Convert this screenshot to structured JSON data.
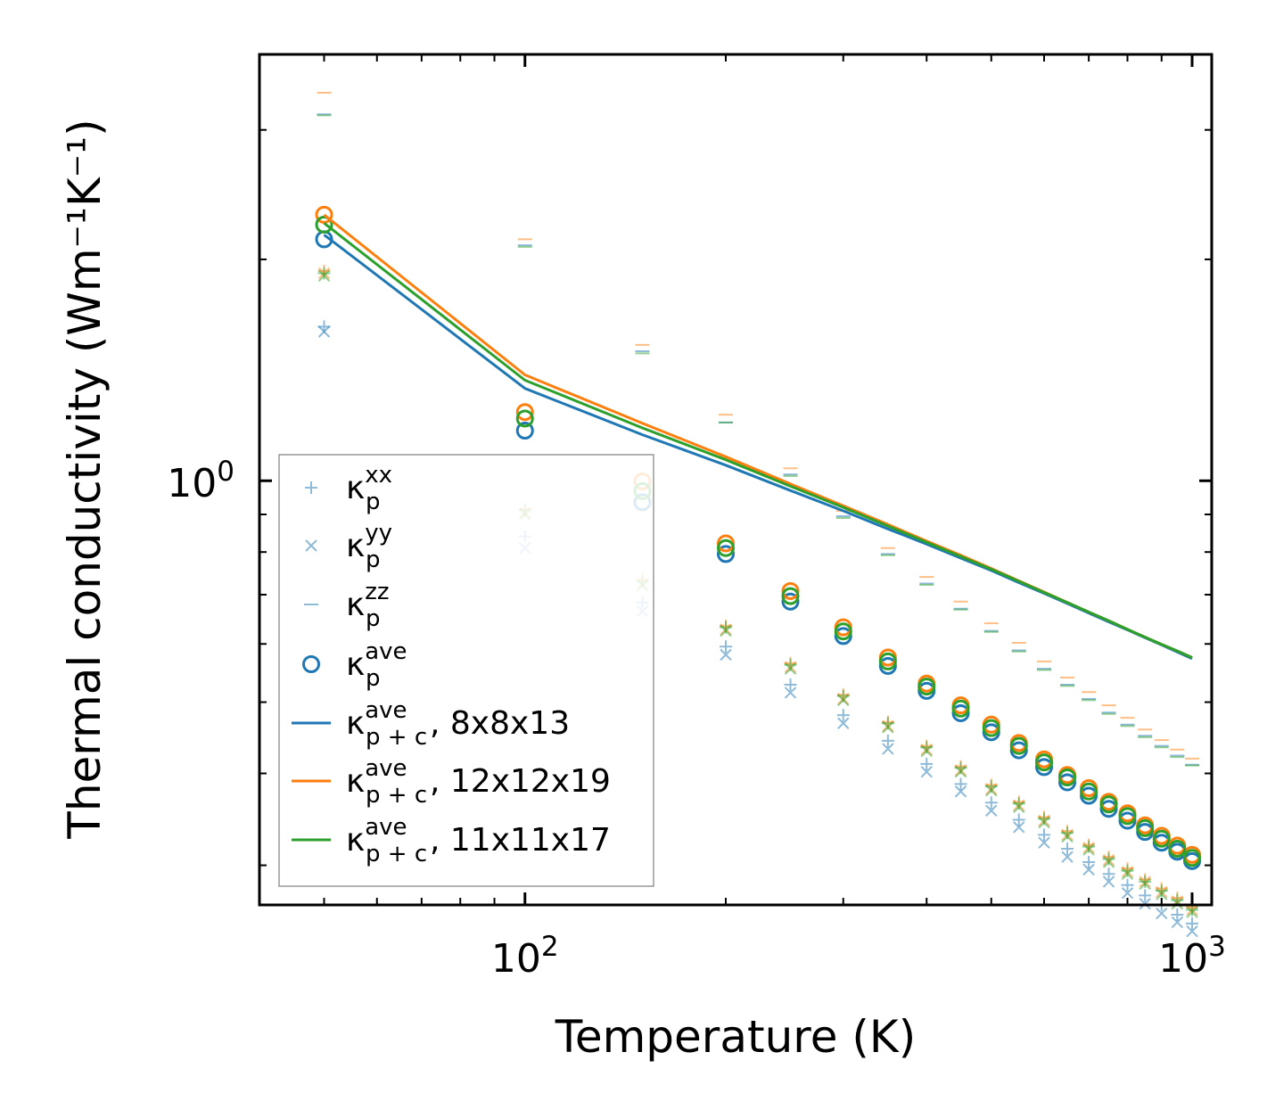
{
  "chart_data": {
    "type": "scatter",
    "xscale": "log",
    "yscale": "log",
    "xlabel": "Temperature (K)",
    "ylabel": "Thermal conductivity (Wm⁻¹K⁻¹)",
    "xlim": [
      40,
      1070
    ],
    "ylim": [
      0.265,
      3.8
    ],
    "xticks": [
      {
        "value": 100,
        "base": "10",
        "exp": "2"
      },
      {
        "value": 1000,
        "base": "10",
        "exp": "3"
      }
    ],
    "yticks": [
      {
        "value": 1.0,
        "base": "10",
        "exp": "0"
      }
    ],
    "temperatures": [
      50,
      100,
      150,
      200,
      250,
      300,
      350,
      400,
      450,
      500,
      550,
      600,
      650,
      700,
      750,
      800,
      850,
      900,
      950,
      1000
    ],
    "colors": {
      "blue": "#1f77b4",
      "orange": "#ff7f0e",
      "green": "#2ca02c"
    },
    "grids": [
      {
        "name": "8x8x13",
        "color": "#1f77b4",
        "kxx": [
          1.62,
          0.84,
          0.683,
          0.595,
          0.528,
          0.48,
          0.443,
          0.412,
          0.387,
          0.365,
          0.346,
          0.33,
          0.316,
          0.303,
          0.292,
          0.282,
          0.273,
          0.265,
          0.257,
          0.25
        ],
        "kyy": [
          1.595,
          0.81,
          0.665,
          0.58,
          0.515,
          0.468,
          0.432,
          0.402,
          0.378,
          0.356,
          0.338,
          0.322,
          0.308,
          0.296,
          0.285,
          0.275,
          0.266,
          0.258,
          0.251,
          0.244
        ],
        "kzz": [
          3.15,
          2.09,
          1.5,
          1.2,
          1.02,
          0.895,
          0.795,
          0.725,
          0.67,
          0.625,
          0.588,
          0.555,
          0.528,
          0.505,
          0.484,
          0.466,
          0.45,
          0.436,
          0.423,
          0.411
        ],
        "kave": [
          2.13,
          1.17,
          0.935,
          0.795,
          0.685,
          0.615,
          0.56,
          0.518,
          0.483,
          0.455,
          0.43,
          0.408,
          0.389,
          0.373,
          0.358,
          0.345,
          0.333,
          0.322,
          0.313,
          0.304
        ],
        "kpc": [
          2.16,
          1.335,
          1.155,
          1.05,
          0.97,
          0.91,
          0.86,
          0.82,
          0.785,
          0.755,
          0.727,
          0.703,
          0.681,
          0.661,
          0.643,
          0.627,
          0.612,
          0.598,
          0.585,
          0.573
        ]
      },
      {
        "name": "12x12x19",
        "color": "#ff7f0e",
        "kxx": [
          1.93,
          0.915,
          0.735,
          0.635,
          0.565,
          0.512,
          0.47,
          0.436,
          0.409,
          0.386,
          0.366,
          0.349,
          0.334,
          0.32,
          0.308,
          0.297,
          0.287,
          0.279,
          0.271,
          0.263
        ],
        "kyy": [
          1.915,
          0.905,
          0.725,
          0.628,
          0.558,
          0.505,
          0.464,
          0.431,
          0.404,
          0.381,
          0.362,
          0.345,
          0.33,
          0.317,
          0.305,
          0.294,
          0.285,
          0.276,
          0.268,
          0.261
        ],
        "kzz": [
          3.37,
          2.13,
          1.53,
          1.23,
          1.04,
          0.91,
          0.81,
          0.74,
          0.685,
          0.64,
          0.602,
          0.568,
          0.54,
          0.516,
          0.495,
          0.476,
          0.459,
          0.444,
          0.431,
          0.419
        ],
        "kave": [
          2.3,
          1.24,
          0.998,
          0.822,
          0.708,
          0.632,
          0.575,
          0.53,
          0.495,
          0.466,
          0.44,
          0.418,
          0.398,
          0.382,
          0.366,
          0.353,
          0.34,
          0.329,
          0.319,
          0.31
        ],
        "kpc": [
          2.3,
          1.393,
          1.197,
          1.078,
          0.99,
          0.925,
          0.872,
          0.828,
          0.792,
          0.76,
          0.731,
          0.706,
          0.683,
          0.663,
          0.645,
          0.628,
          0.613,
          0.599,
          0.587,
          0.575
        ]
      },
      {
        "name": "11x11x17",
        "color": "#2ca02c",
        "kxx": [
          1.915,
          0.912,
          0.73,
          0.632,
          0.562,
          0.51,
          0.468,
          0.434,
          0.407,
          0.384,
          0.364,
          0.347,
          0.332,
          0.318,
          0.306,
          0.295,
          0.285,
          0.277,
          0.269,
          0.261
        ],
        "kyy": [
          1.9,
          0.9,
          0.72,
          0.625,
          0.555,
          0.503,
          0.462,
          0.429,
          0.402,
          0.379,
          0.36,
          0.343,
          0.328,
          0.315,
          0.303,
          0.292,
          0.283,
          0.274,
          0.266,
          0.259
        ],
        "kzz": [
          3.14,
          2.08,
          1.49,
          1.2,
          1.015,
          0.89,
          0.792,
          0.722,
          0.668,
          0.623,
          0.586,
          0.553,
          0.526,
          0.503,
          0.482,
          0.464,
          0.448,
          0.434,
          0.421,
          0.41
        ],
        "kave": [
          2.23,
          1.215,
          0.968,
          0.81,
          0.697,
          0.624,
          0.568,
          0.525,
          0.49,
          0.461,
          0.436,
          0.414,
          0.395,
          0.378,
          0.363,
          0.35,
          0.337,
          0.326,
          0.316,
          0.307
        ],
        "kpc": [
          2.24,
          1.37,
          1.18,
          1.068,
          0.983,
          0.92,
          0.868,
          0.825,
          0.789,
          0.758,
          0.73,
          0.705,
          0.683,
          0.663,
          0.645,
          0.628,
          0.613,
          0.599,
          0.587,
          0.575
        ]
      }
    ],
    "legend": {
      "location": "lower-left",
      "items": [
        {
          "marker": "plus",
          "symbol": "κ",
          "sub": "p",
          "sup": "xx",
          "suffix": ""
        },
        {
          "marker": "cross",
          "symbol": "κ",
          "sub": "p",
          "sup": "yy",
          "suffix": ""
        },
        {
          "marker": "dash",
          "symbol": "κ",
          "sub": "p",
          "sup": "zz",
          "suffix": ""
        },
        {
          "marker": "circle",
          "symbol": "κ",
          "sub": "p",
          "sup": "ave",
          "suffix": ""
        },
        {
          "marker": "line",
          "color": "#1f77b4",
          "symbol": "κ",
          "sub": "p + c",
          "sup": "ave",
          "suffix": ", 8x8x13"
        },
        {
          "marker": "line",
          "color": "#ff7f0e",
          "symbol": "κ",
          "sub": "p + c",
          "sup": "ave",
          "suffix": ", 12x12x19"
        },
        {
          "marker": "line",
          "color": "#2ca02c",
          "symbol": "κ",
          "sub": "p + c",
          "sup": "ave",
          "suffix": ", 11x11x17"
        }
      ]
    }
  }
}
